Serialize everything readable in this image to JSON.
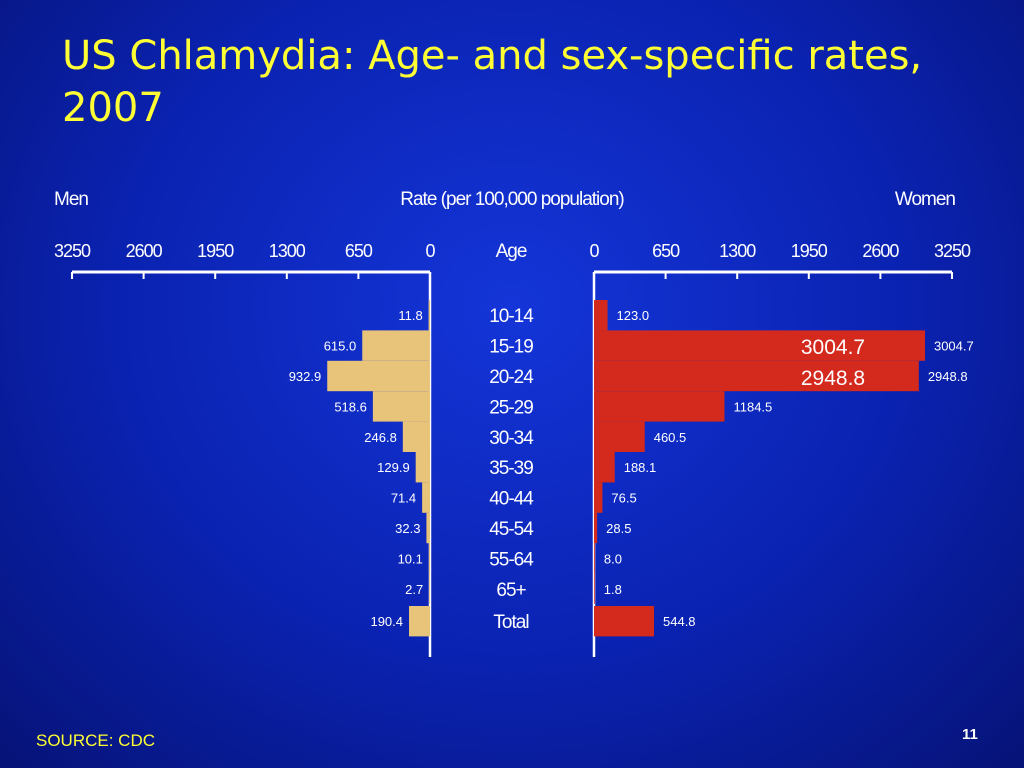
{
  "slide": {
    "title": "US Chlamydia: Age- and sex-specific rates, 2007",
    "source": "SOURCE: CDC",
    "page_number": "11"
  },
  "colors": {
    "men_bar": "#e8c47a",
    "women_bar": "#d42a1e",
    "title": "#ffff33",
    "text": "#ffffff",
    "highlight_box": "#d42a1e"
  },
  "chart_data": {
    "type": "bar",
    "subtype": "population-pyramid",
    "xlabel": "Rate (per 100,000 population)",
    "ylabel": "Age",
    "left_label": "Men",
    "right_label": "Women",
    "xlim": [
      0,
      3250
    ],
    "ticks": [
      0,
      650,
      1300,
      1950,
      2600,
      3250
    ],
    "tick_labels": [
      "0",
      "650",
      "1300",
      "1950",
      "2600",
      "3250"
    ],
    "categories": [
      "10-14",
      "15-19",
      "20-24",
      "25-29",
      "30-34",
      "35-39",
      "40-44",
      "45-54",
      "55-64",
      "65+",
      "Total"
    ],
    "series": [
      {
        "name": "Men",
        "values": [
          11.8,
          615.0,
          932.9,
          518.6,
          246.8,
          129.9,
          71.4,
          32.3,
          10.1,
          2.7,
          190.4
        ],
        "labels": [
          "11.8",
          "615.0",
          "932.9",
          "518.6",
          "246.8",
          "129.9",
          "71.4",
          "32.3",
          "10.1",
          "2.7",
          "190.4"
        ]
      },
      {
        "name": "Women",
        "values": [
          123.0,
          3004.7,
          2948.8,
          1184.5,
          460.5,
          188.1,
          76.5,
          28.5,
          8.0,
          1.8,
          544.8
        ],
        "labels": [
          "123.0",
          "3004.7",
          "2948.8",
          "1184.5",
          "460.5",
          "188.1",
          "76.5",
          "28.5",
          "8.0",
          "1.8",
          "544.8"
        ]
      }
    ],
    "annotations": [
      "3004.7",
      "2948.8"
    ]
  }
}
